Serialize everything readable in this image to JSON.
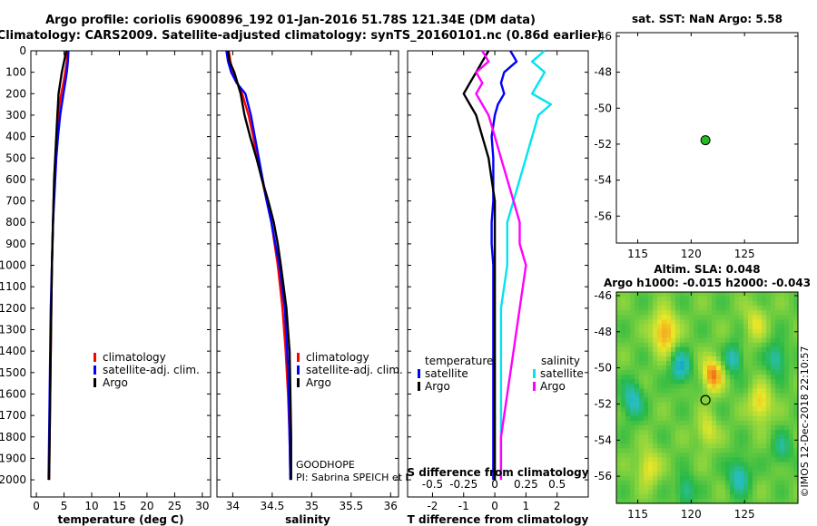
{
  "header": {
    "line1": "Argo profile: coriolis 6900896_192 01-Jan-2016 51.78S 121.34E (DM data)",
    "line2": "Climatology: CARS2009. Satellite-adjusted climatology: synTS_20160101.nc (0.86d earlier)"
  },
  "colors": {
    "climatology": "#ff0000",
    "satellite": "#0000ff",
    "argo": "#000000",
    "salinity_satellite": "#00e5ee",
    "salinity_argo": "#ff00ff",
    "marker": "#22bb22"
  },
  "depth_axis": {
    "ticks": [
      "0",
      "100",
      "200",
      "300",
      "400",
      "500",
      "600",
      "700",
      "800",
      "900",
      "1000",
      "1100",
      "1200",
      "1300",
      "1400",
      "1500",
      "1600",
      "1700",
      "1800",
      "1900",
      "2000"
    ]
  },
  "chart_data": [
    {
      "type": "line",
      "name": "temperature-profile",
      "xlabel": "temperature (deg C)",
      "xlim": [
        -1,
        31.5
      ],
      "ylim": [
        2080,
        0
      ],
      "x_ticks": [
        "0",
        "5",
        "10",
        "15",
        "20",
        "25",
        "30"
      ],
      "legend": [
        "climatology",
        "satellite-adj. clim.",
        "Argo"
      ],
      "depth": [
        0,
        50,
        100,
        150,
        200,
        250,
        300,
        400,
        500,
        600,
        700,
        800,
        900,
        1000,
        1200,
        1400,
        1600,
        1800,
        2000
      ],
      "series": [
        {
          "name": "climatology",
          "values": [
            5.6,
            5.5,
            5.2,
            4.9,
            4.5,
            4.2,
            4.0,
            3.7,
            3.5,
            3.3,
            3.1,
            3.0,
            2.9,
            2.8,
            2.7,
            2.6,
            2.5,
            2.4,
            2.3
          ]
        },
        {
          "name": "satellite-adj. clim.",
          "values": [
            5.8,
            5.7,
            5.5,
            5.2,
            4.9,
            4.6,
            4.3,
            3.9,
            3.6,
            3.4,
            3.2,
            3.0,
            2.9,
            2.8,
            2.6,
            2.5,
            2.4,
            2.3,
            2.2
          ]
        },
        {
          "name": "Argo",
          "values": [
            5.4,
            5.0,
            4.6,
            4.3,
            4.0,
            3.9,
            3.8,
            3.6,
            3.4,
            3.2,
            3.1,
            3.0,
            2.9,
            2.8,
            2.7,
            2.6,
            2.5,
            2.4,
            2.3
          ]
        }
      ]
    },
    {
      "type": "line",
      "name": "salinity-profile",
      "xlabel": "salinity",
      "xlim": [
        33.8,
        36.1
      ],
      "ylim": [
        2080,
        0
      ],
      "x_ticks": [
        "34",
        "34.5",
        "35",
        "35.5",
        "36"
      ],
      "legend": [
        "climatology",
        "satellite-adj. clim.",
        "Argo"
      ],
      "annotations": [
        "GOODHOPE",
        "PI: Sabrina SPEICH et Michel ARHAN"
      ],
      "depth": [
        0,
        50,
        100,
        150,
        200,
        300,
        400,
        500,
        600,
        700,
        800,
        900,
        1000,
        1200,
        1400,
        1600,
        1800,
        2000
      ],
      "series": [
        {
          "name": "climatology",
          "values": [
            33.95,
            33.97,
            34.0,
            34.06,
            34.12,
            34.2,
            34.26,
            34.31,
            34.37,
            34.43,
            34.49,
            34.53,
            34.57,
            34.63,
            34.67,
            34.7,
            34.72,
            34.73
          ]
        },
        {
          "name": "satellite-adj. clim.",
          "values": [
            33.92,
            33.94,
            33.98,
            34.05,
            34.16,
            34.23,
            34.28,
            34.33,
            34.38,
            34.43,
            34.49,
            34.54,
            34.59,
            34.66,
            34.69,
            34.71,
            34.72,
            34.73
          ]
        },
        {
          "name": "Argo",
          "values": [
            33.94,
            33.96,
            34.02,
            34.06,
            34.1,
            34.15,
            34.22,
            34.3,
            34.37,
            34.45,
            34.52,
            34.57,
            34.61,
            34.68,
            34.72,
            34.73,
            34.74,
            34.74
          ]
        }
      ]
    },
    {
      "type": "line",
      "name": "difference-profile",
      "xlabel": "T difference from climatology",
      "xlabel_top": "S difference from climatology",
      "xlim": [
        -2.8,
        3.0
      ],
      "ylim": [
        2080,
        0
      ],
      "x_ticks": [
        "-2",
        "-1",
        "0",
        "1",
        "2"
      ],
      "x_ticks_top": [
        "-0.5",
        "-0.25",
        "0",
        "0.25",
        "0.5"
      ],
      "legend_temperature_title": "temperature",
      "legend_salinity_title": "salinity",
      "legend": [
        "satellite",
        "Argo",
        "satellite",
        "Argo"
      ],
      "depth": [
        0,
        50,
        100,
        150,
        200,
        250,
        300,
        400,
        500,
        600,
        700,
        800,
        900,
        1000,
        1200,
        1400,
        1600,
        1800,
        2000
      ],
      "series": [
        {
          "name": "T satellite",
          "values": [
            0.5,
            0.7,
            0.3,
            0.2,
            0.3,
            0.1,
            0.0,
            -0.1,
            -0.05,
            -0.05,
            -0.05,
            -0.1,
            -0.1,
            -0.05,
            -0.05,
            -0.05,
            -0.05,
            -0.05,
            -0.05
          ]
        },
        {
          "name": "T Argo",
          "values": [
            -0.2,
            -0.4,
            -0.6,
            -0.8,
            -1.0,
            -0.8,
            -0.6,
            -0.4,
            -0.2,
            -0.1,
            0.0,
            0.0,
            0.0,
            0.0,
            0.0,
            0.0,
            0.0,
            0.0,
            0.0
          ]
        },
        {
          "name": "S satellite",
          "values": [
            0.4,
            0.3,
            0.4,
            0.35,
            0.3,
            0.45,
            0.35,
            0.3,
            0.25,
            0.2,
            0.15,
            0.1,
            0.1,
            0.1,
            0.05,
            0.05,
            0.05,
            0.05,
            0.05
          ]
        },
        {
          "name": "S Argo",
          "values": [
            -0.1,
            -0.05,
            -0.15,
            -0.1,
            -0.15,
            -0.1,
            -0.05,
            0.0,
            0.05,
            0.1,
            0.15,
            0.2,
            0.2,
            0.25,
            0.2,
            0.15,
            0.1,
            0.05,
            0.05
          ]
        }
      ]
    },
    {
      "type": "scatter",
      "name": "sst-location-map",
      "title": "sat. SST: NaN Argo: 5.58",
      "xlim": [
        113,
        130
      ],
      "ylim": [
        -57.5,
        -45.8
      ],
      "x_ticks": [
        "115",
        "120",
        "125"
      ],
      "y_ticks": [
        "-46",
        "-48",
        "-50",
        "-52",
        "-54",
        "-56"
      ],
      "points": [
        {
          "x": 121.34,
          "y": -51.78
        }
      ]
    },
    {
      "type": "heatmap",
      "name": "sla-map",
      "title1": "Altim. SLA: 0.048",
      "title2": "Argo h1000: -0.015 h2000: -0.043",
      "side_label": "©IMOS 12-Dec-2018 22:10:57",
      "xlim": [
        113,
        130
      ],
      "ylim": [
        -57.5,
        -45.8
      ],
      "x_ticks": [
        "115",
        "120",
        "125"
      ],
      "y_ticks": [
        "-46",
        "-48",
        "-50",
        "-52",
        "-54",
        "-56"
      ],
      "base_value": 0.0,
      "patches": [
        {
          "x": 117.5,
          "y": -48.0,
          "v": 0.8,
          "r": 1.1
        },
        {
          "x": 122.0,
          "y": -50.4,
          "v": 0.9,
          "r": 0.9
        },
        {
          "x": 126.5,
          "y": -52.0,
          "v": 0.6,
          "r": 1.0
        },
        {
          "x": 126.0,
          "y": -47.5,
          "v": 0.4,
          "r": 1.0
        },
        {
          "x": 116.0,
          "y": -55.5,
          "v": 0.5,
          "r": 1.0
        },
        {
          "x": 121.5,
          "y": -53.5,
          "v": 0.45,
          "r": 0.9
        },
        {
          "x": 119.0,
          "y": -50.0,
          "v": -0.7,
          "r": 0.9
        },
        {
          "x": 114.5,
          "y": -51.8,
          "v": -0.6,
          "r": 1.0
        },
        {
          "x": 124.0,
          "y": -49.5,
          "v": -0.6,
          "r": 0.8
        },
        {
          "x": 128.0,
          "y": -49.5,
          "v": -0.55,
          "r": 0.9
        },
        {
          "x": 124.5,
          "y": -56.0,
          "v": -0.6,
          "r": 1.0
        },
        {
          "x": 119.5,
          "y": -56.8,
          "v": -0.5,
          "r": 0.8
        },
        {
          "x": 128.5,
          "y": -54.5,
          "v": -0.4,
          "r": 0.9
        }
      ],
      "points": [
        {
          "x": 121.34,
          "y": -51.78
        }
      ]
    }
  ]
}
